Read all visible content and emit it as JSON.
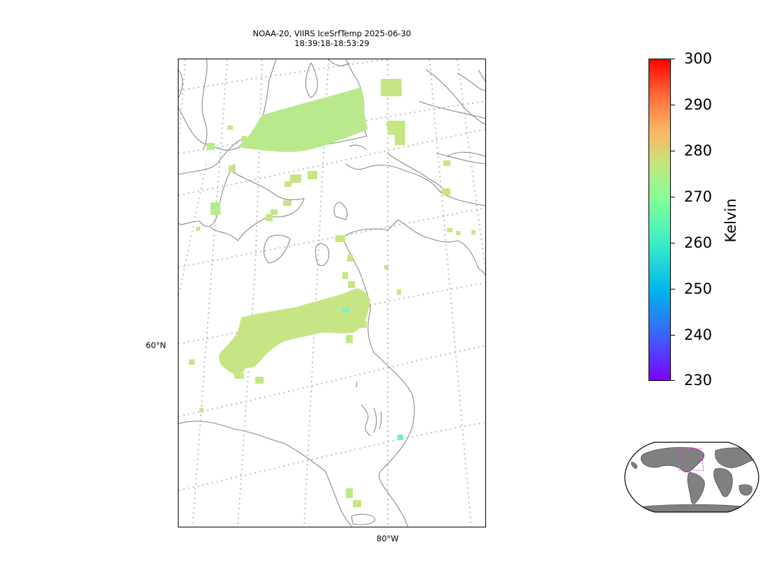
{
  "title_line1": "NOAA-20, VIIRS IceSrfTemp 2025-06-30",
  "title_line2": "18:39:18-18:53:29",
  "gridline_labels": {
    "latitude": "60°N",
    "longitude": "80°W"
  },
  "colorbar": {
    "label": "Kelvin",
    "colormap": "rainbow",
    "vmin": 230,
    "vmax": 300,
    "ticks": [
      "300",
      "290",
      "280",
      "270",
      "260",
      "250",
      "240",
      "230"
    ]
  },
  "colors": {
    "data_green": "#c6e685",
    "data_green_alt": "#b5ec8c",
    "data_cyan": "#6ff0b6",
    "coastline": "#888888",
    "gridline": "#bdbdbd",
    "overview_land": "#808080",
    "overview_box": "#ee44ee"
  }
}
